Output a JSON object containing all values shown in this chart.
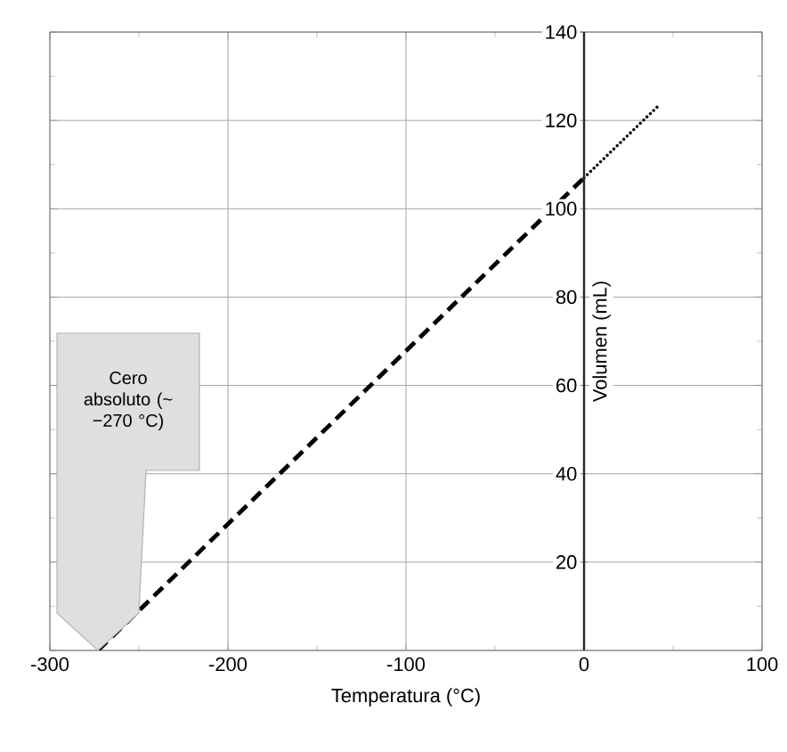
{
  "chart_data": {
    "type": "line",
    "xlabel": "Temperatura (°C)",
    "ylabel": "Volumen (mL)",
    "xlim": [
      -300,
      100
    ],
    "ylim": [
      0,
      140
    ],
    "xticks": [
      -300,
      -200,
      -100,
      0,
      100
    ],
    "yticks": [
      {
        "value": 0,
        "label": null
      },
      20,
      40,
      60,
      80,
      100,
      120,
      140
    ],
    "grid": true,
    "series": [
      {
        "x": [
          -273,
          0
        ],
        "values": [
          0,
          107
        ],
        "color": "#000000",
        "line_style": "dashed"
      },
      {
        "x": [
          0,
          41
        ],
        "values": [
          107,
          123
        ],
        "color": "#000000",
        "line_style": "dotted"
      }
    ],
    "annotations": [
      "Cero absoluto (~ −270 °C)"
    ]
  }
}
